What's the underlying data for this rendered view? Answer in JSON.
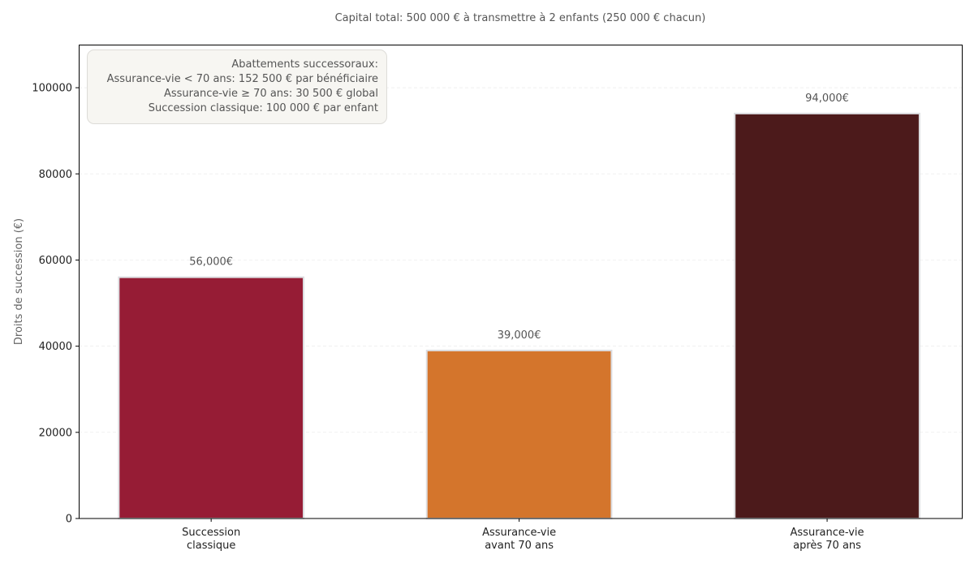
{
  "chart_data": {
    "type": "bar",
    "title": "Capital total: 500 000 € à transmettre à 2 enfants (250 000 € chacun)",
    "xlabel": "",
    "ylabel": "Droits de succession (€)",
    "categories": [
      [
        "Succession",
        "classique"
      ],
      [
        "Assurance-vie",
        "avant 70 ans"
      ],
      [
        "Assurance-vie",
        "après 70 ans"
      ]
    ],
    "values": [
      56000,
      39000,
      94000
    ],
    "data_labels": [
      "56,000€",
      "39,000€",
      "94,000€"
    ],
    "colors": [
      "#961c35",
      "#d4752c",
      "#4c1a1b"
    ],
    "ylim": [
      0,
      110000
    ],
    "yticks": [
      0,
      20000,
      40000,
      60000,
      80000,
      100000
    ],
    "ytick_labels": [
      "0",
      "20000",
      "40000",
      "60000",
      "80000",
      "100000"
    ],
    "grid": "y, dashed",
    "annotation": {
      "placement": "top-left",
      "lines": [
        "Abattements successoraux:",
        "Assurance-vie < 70 ans: 152 500 € par bénéficiaire",
        "Assurance-vie ≥ 70 ans: 30 500 € global",
        "Succession classique: 100 000 € par enfant"
      ]
    }
  }
}
